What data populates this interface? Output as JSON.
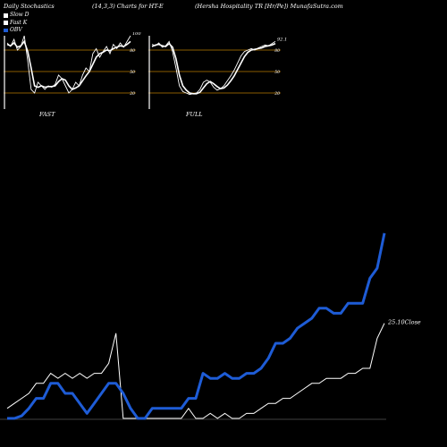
{
  "header": {
    "left": "Daily Stochastics",
    "mid": "(14,3,3) Charts for HT-E",
    "right": "(Hersha  Hospitality TR [Hr/Pe]) MunafaSutra.com"
  },
  "legend": [
    {
      "label": "Slow  D",
      "color": "#ffffff"
    },
    {
      "label": "Fast K",
      "color": "#ffffff"
    },
    {
      "label": "OBV",
      "color": "#1e5cd6"
    }
  ],
  "panels": [
    {
      "label": "FAST",
      "end_value": "100",
      "levels": [
        "80",
        "50",
        "20"
      ]
    },
    {
      "label": "FULL",
      "end_value": "92.1",
      "levels": [
        "80",
        "50",
        "20"
      ]
    }
  ],
  "close_label": "25.10Close",
  "chart_data": [
    {
      "type": "line",
      "title": "FAST",
      "ylim": [
        0,
        100
      ],
      "levels": [
        20,
        50,
        80
      ],
      "series": [
        {
          "name": "Fast K",
          "values": [
            90,
            85,
            95,
            80,
            85,
            100,
            65,
            25,
            20,
            35,
            30,
            25,
            30,
            28,
            32,
            45,
            40,
            30,
            20,
            25,
            35,
            30,
            45,
            55,
            50,
            75,
            82,
            70,
            78,
            85,
            75,
            88,
            82,
            90,
            84,
            92,
            100
          ]
        },
        {
          "name": "Slow  D",
          "values": [
            88,
            86,
            90,
            84,
            86,
            92,
            78,
            55,
            30,
            28,
            30,
            28,
            29,
            29,
            30,
            36,
            40,
            38,
            30,
            25,
            27,
            30,
            37,
            44,
            50,
            60,
            70,
            75,
            77,
            80,
            79,
            82,
            84,
            86,
            85,
            88,
            92
          ]
        }
      ]
    },
    {
      "type": "line",
      "title": "FULL",
      "ylim": [
        0,
        100
      ],
      "levels": [
        20,
        50,
        80
      ],
      "series": [
        {
          "name": "Fast K",
          "values": [
            88,
            86,
            90,
            84,
            86,
            92,
            78,
            55,
            30,
            22,
            20,
            18,
            19,
            20,
            25,
            35,
            38,
            35,
            28,
            24,
            26,
            30,
            37,
            44,
            52,
            62,
            72,
            78,
            80,
            82,
            80,
            83,
            85,
            87,
            86,
            89,
            92.1
          ]
        },
        {
          "name": "Slow  D",
          "values": [
            85,
            87,
            88,
            86,
            85,
            89,
            84,
            68,
            45,
            30,
            24,
            20,
            19,
            19,
            21,
            27,
            33,
            36,
            33,
            29,
            26,
            27,
            31,
            37,
            44,
            53,
            62,
            71,
            77,
            80,
            81,
            82,
            83,
            85,
            86,
            87,
            89
          ]
        }
      ]
    },
    {
      "type": "line",
      "title": "",
      "series": [
        {
          "name": "OBV",
          "values": [
            0,
            0,
            0.5,
            2,
            4,
            4,
            7,
            7,
            5,
            5,
            3,
            1,
            3,
            5,
            7,
            7,
            5,
            2,
            0,
            0,
            2,
            2,
            2,
            2,
            2,
            4,
            4,
            9,
            8,
            8,
            9,
            8,
            8,
            9,
            9,
            10,
            12,
            15,
            15,
            16,
            18,
            19,
            20,
            22,
            22,
            21,
            21,
            23,
            23,
            23,
            28,
            30,
            37
          ]
        },
        {
          "name": "Close",
          "values": [
            2,
            3,
            4,
            5,
            7,
            7,
            9,
            8,
            9,
            8,
            9,
            8,
            9,
            9,
            11,
            17,
            0,
            0,
            0,
            0,
            0,
            0,
            0,
            0,
            0,
            2,
            0,
            0,
            1,
            0,
            1,
            0,
            0,
            1,
            1,
            2,
            3,
            3,
            4,
            4,
            5,
            6,
            7,
            7,
            8,
            8,
            8,
            9,
            9,
            10,
            10,
            16,
            19
          ]
        }
      ]
    }
  ]
}
